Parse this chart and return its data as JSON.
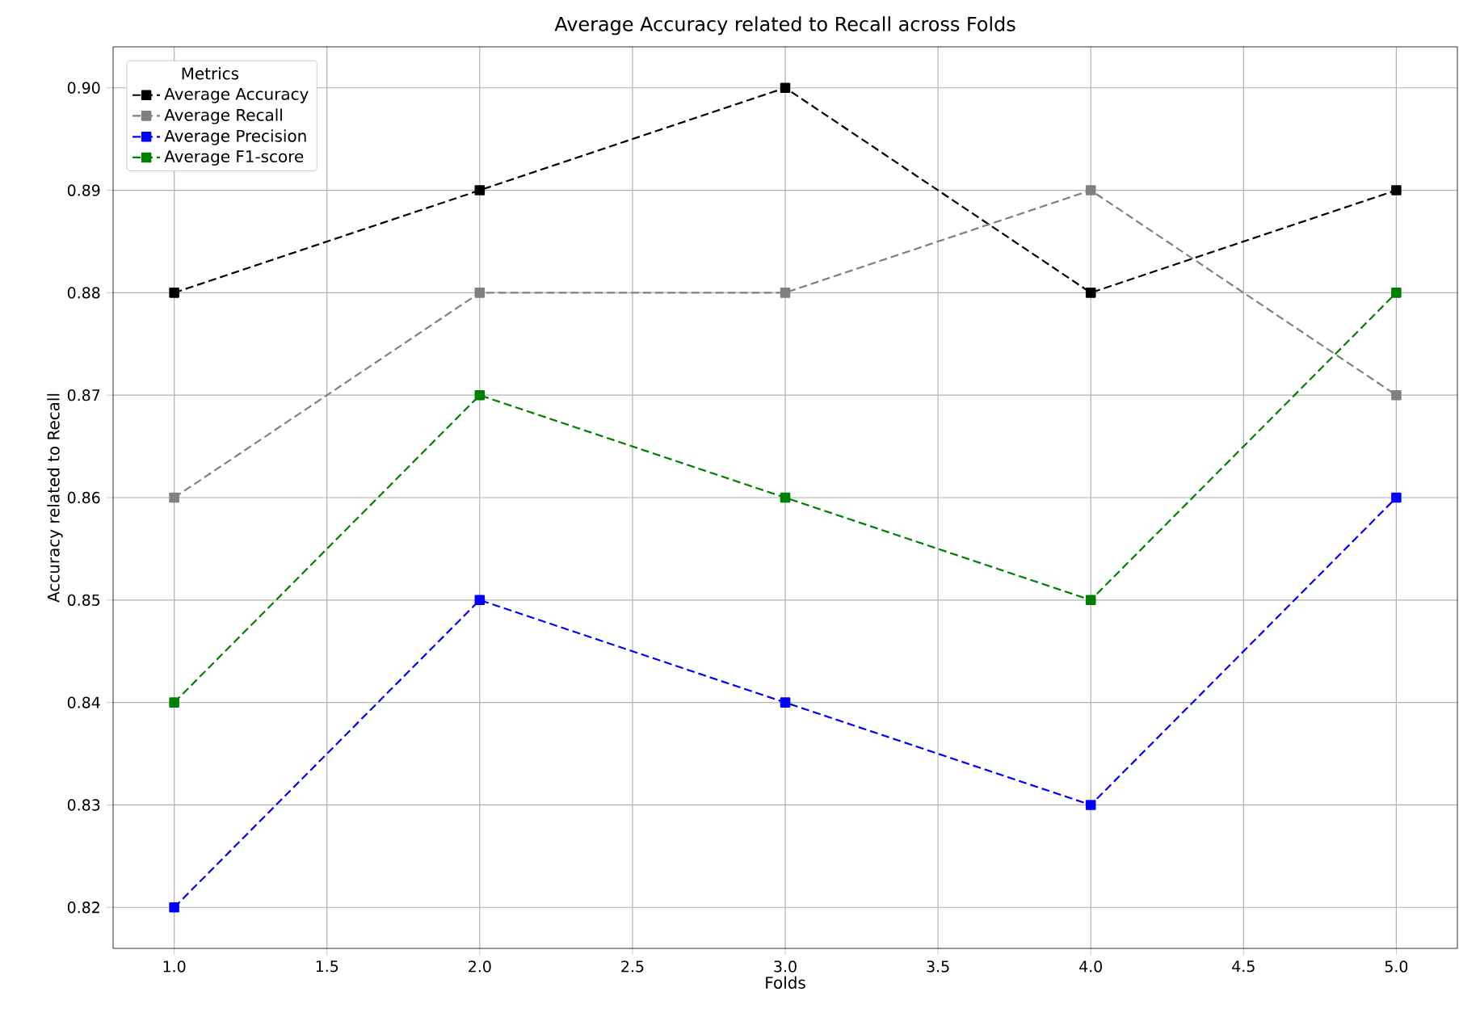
{
  "chart_data": {
    "type": "line",
    "title": "Average Accuracy related to Recall across Folds",
    "xlabel": "Folds",
    "ylabel": "Accuracy related to Recall",
    "legend_title": "Metrics",
    "x": [
      1,
      2,
      3,
      4,
      5
    ],
    "series": [
      {
        "name": "Average Accuracy",
        "color": "#000000",
        "values": [
          0.88,
          0.89,
          0.9,
          0.88,
          0.89
        ]
      },
      {
        "name": "Average Recall",
        "color": "#808080",
        "values": [
          0.86,
          0.88,
          0.88,
          0.89,
          0.87
        ]
      },
      {
        "name": "Average Precision",
        "color": "#0000ff",
        "values": [
          0.82,
          0.85,
          0.84,
          0.83,
          0.86
        ]
      },
      {
        "name": "Average F1-score",
        "color": "#008000",
        "values": [
          0.84,
          0.87,
          0.86,
          0.85,
          0.88
        ]
      }
    ],
    "xlim": [
      0.8,
      5.2
    ],
    "ylim": [
      0.816,
      0.904
    ],
    "xticks": [
      {
        "value": 1,
        "label": "1.0"
      },
      {
        "value": 1.5,
        "label": "1.5"
      },
      {
        "value": 2,
        "label": "2.0"
      },
      {
        "value": 2.5,
        "label": "2.5"
      },
      {
        "value": 3,
        "label": "3.0"
      },
      {
        "value": 3.5,
        "label": "3.5"
      },
      {
        "value": 4,
        "label": "4.0"
      },
      {
        "value": 4.5,
        "label": "4.5"
      },
      {
        "value": 5,
        "label": "5.0"
      }
    ],
    "yticks": [
      {
        "value": 0.82,
        "label": "0.82"
      },
      {
        "value": 0.83,
        "label": "0.83"
      },
      {
        "value": 0.84,
        "label": "0.84"
      },
      {
        "value": 0.85,
        "label": "0.85"
      },
      {
        "value": 0.86,
        "label": "0.86"
      },
      {
        "value": 0.87,
        "label": "0.87"
      },
      {
        "value": 0.88,
        "label": "0.88"
      },
      {
        "value": 0.89,
        "label": "0.89"
      },
      {
        "value": 0.9,
        "label": "0.90"
      }
    ],
    "grid": true,
    "legend": "top left",
    "marker": "square",
    "line_style": "dashed"
  }
}
